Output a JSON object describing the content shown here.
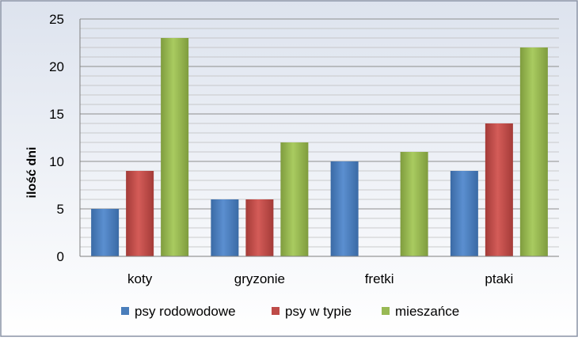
{
  "chart_data": {
    "type": "bar",
    "title": "",
    "xlabel": "",
    "ylabel": "ilość dni",
    "ylim": [
      0,
      25
    ],
    "yticks": [
      0,
      5,
      10,
      15,
      20,
      25
    ],
    "grid": true,
    "legend_position": "bottom",
    "categories": [
      "koty",
      "gryzonie",
      "fretki",
      "ptaki"
    ],
    "series": [
      {
        "name": "psy rodowodowe",
        "color": "#4a7ebb",
        "values": [
          5,
          6,
          10,
          9
        ]
      },
      {
        "name": "psy w typie",
        "color": "#be4b48",
        "values": [
          9,
          6,
          0,
          14
        ]
      },
      {
        "name": "mieszańce",
        "color": "#98b954",
        "values": [
          23,
          12,
          11,
          22
        ]
      }
    ]
  }
}
